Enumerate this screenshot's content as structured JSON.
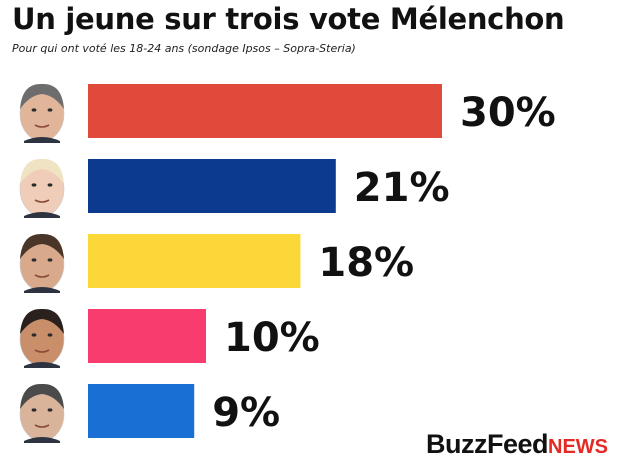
{
  "header": {
    "title": "Un jeune sur trois vote Mélenchon",
    "subtitle": "Pour qui ont voté les 18-24 ans (sondage Ipsos – Sopra-Steria)"
  },
  "logo": {
    "part1": "BuzzFeed",
    "part2": "NEWS"
  },
  "chart_data": {
    "type": "bar",
    "orientation": "horizontal",
    "title": "Un jeune sur trois vote Mélenchon",
    "subtitle": "Pour qui ont voté les 18-24 ans (sondage Ipsos – Sopra-Steria)",
    "values": [
      30,
      21,
      18,
      10,
      9
    ],
    "data_labels": [
      "30%",
      "21%",
      "18%",
      "10%",
      "9%"
    ],
    "colors": [
      "#e04a3b",
      "#0c3a8f",
      "#fbd837",
      "#f83d6e",
      "#1a6fd4"
    ],
    "category_icons": [
      "portrait-icon",
      "portrait-icon",
      "portrait-icon",
      "portrait-icon",
      "portrait-icon"
    ],
    "unit": "%",
    "grid": false,
    "axes_visible": false
  }
}
